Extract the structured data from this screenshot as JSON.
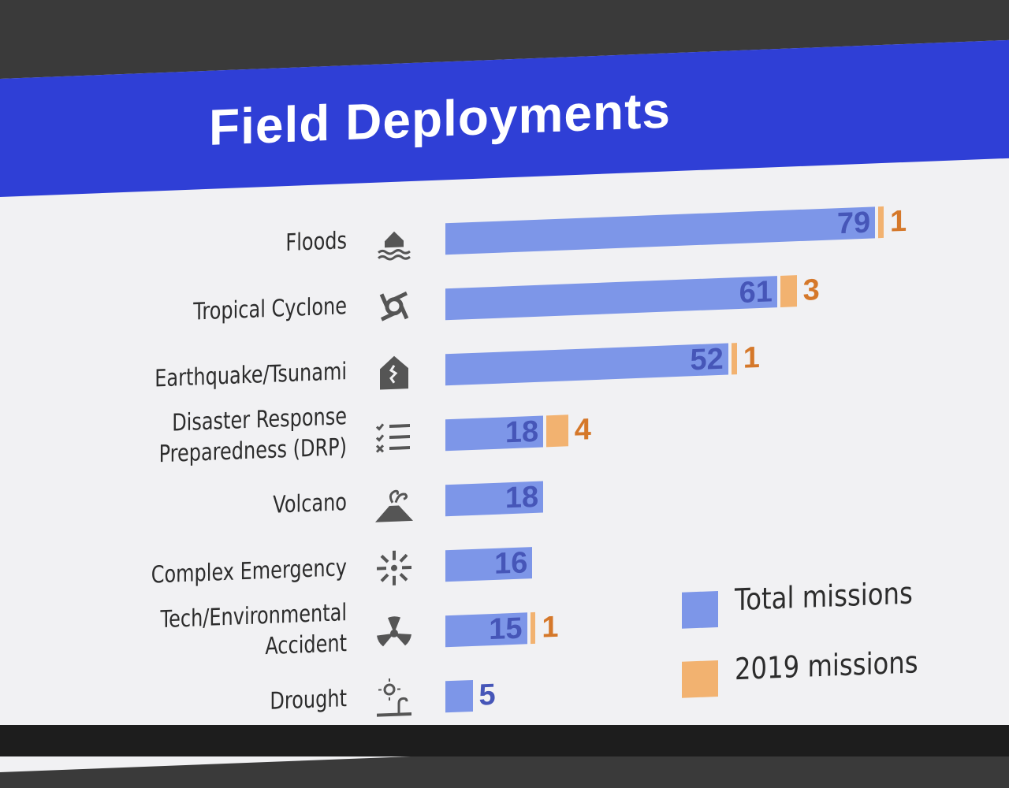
{
  "slide": {
    "title": "Field Deployments"
  },
  "chart_data": {
    "type": "bar",
    "orientation": "horizontal",
    "categories": [
      "Floods",
      "Tropical Cyclone",
      "Earthquake/Tsunami",
      "Disaster Response Preparedness (DRP)",
      "Volcano",
      "Complex Emergency",
      "Tech/Environmental Accident",
      "Drought"
    ],
    "icons": [
      "flood-icon",
      "cyclone-icon",
      "earthquake-icon",
      "checklist-icon",
      "volcano-icon",
      "complex-emergency-icon",
      "radiation-icon",
      "drought-icon"
    ],
    "series": [
      {
        "name": "Total missions",
        "values": [
          79,
          61,
          52,
          18,
          18,
          16,
          15,
          5
        ],
        "color": "#7d96e8"
      },
      {
        "name": "2019 missions",
        "values": [
          1,
          3,
          1,
          4,
          null,
          null,
          1,
          null
        ],
        "color": "#f2b270"
      }
    ],
    "title": "Field Deployments",
    "xlabel": "",
    "ylabel": "",
    "grid": false,
    "legend_position": "bottom-right"
  },
  "legend": {
    "total_label": "Total missions",
    "y2019_label": "2019 missions"
  }
}
